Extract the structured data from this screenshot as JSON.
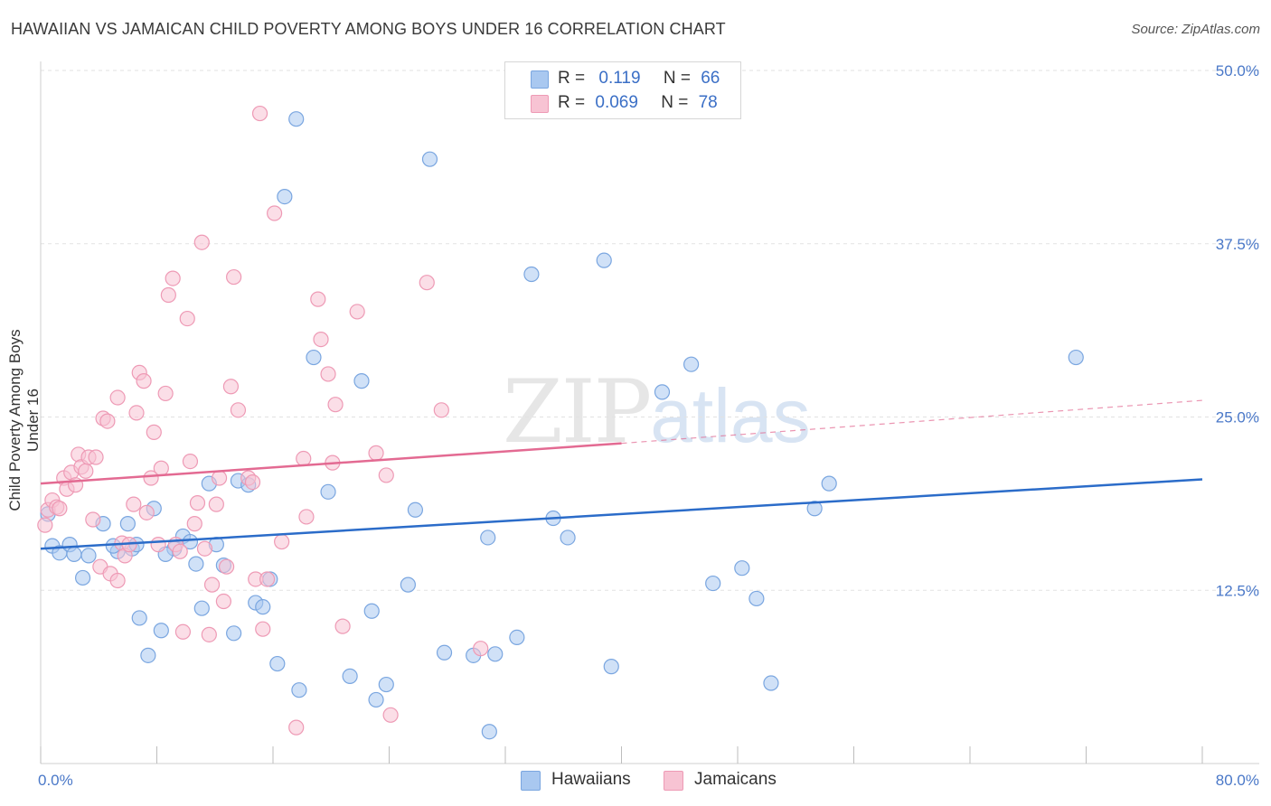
{
  "title": "HAWAIIAN VS JAMAICAN CHILD POVERTY AMONG BOYS UNDER 16 CORRELATION CHART",
  "source": "Source: ZipAtlas.com",
  "watermark": {
    "zip": "ZIP",
    "atlas": "atlas"
  },
  "legend": {
    "rows": [
      {
        "r_label": "R =",
        "r_value": "0.119",
        "n_label": "N =",
        "n_value": "66",
        "color": "#a9c8f0",
        "border": "#7aa6e0"
      },
      {
        "r_label": "R =",
        "r_value": "0.069",
        "n_label": "N =",
        "n_value": "78",
        "color": "#f7c3d3",
        "border": "#ee9ab5"
      }
    ]
  },
  "bottom_legend": [
    {
      "label": "Hawaiians",
      "color": "#a9c8f0",
      "border": "#7aa6e0"
    },
    {
      "label": "Jamaicans",
      "color": "#f7c3d3",
      "border": "#ee9ab5"
    }
  ],
  "chart_data": {
    "type": "scatter",
    "title": "HAWAIIAN VS JAMAICAN CHILD POVERTY AMONG BOYS UNDER 16 CORRELATION CHART",
    "xlabel": "",
    "ylabel": "Child Poverty Among Boys Under 16",
    "xlim": [
      0,
      80
    ],
    "ylim": [
      0,
      50
    ],
    "x_tick_labels": [
      "0.0%",
      "80.0%"
    ],
    "y_ticks": [
      12.5,
      25.0,
      37.5,
      50.0
    ],
    "y_tick_labels": [
      "12.5%",
      "25.0%",
      "37.5%",
      "50.0%"
    ],
    "grid": "horizontal dashed",
    "series": [
      {
        "name": "Hawaiians",
        "color": "#7aa6e0",
        "fill": "#a9c8f0",
        "trend": {
          "x0": 0,
          "y0": 15.5,
          "x1": 80,
          "y1": 20.5,
          "style": "solid",
          "color": "#2b6cc9"
        },
        "points": [
          [
            0.8,
            15.7
          ],
          [
            1.3,
            15.2
          ],
          [
            2.0,
            15.8
          ],
          [
            2.3,
            15.1
          ],
          [
            3.3,
            15.0
          ],
          [
            2.9,
            13.4
          ],
          [
            4.3,
            17.3
          ],
          [
            5.3,
            15.3
          ],
          [
            5.0,
            15.7
          ],
          [
            6.3,
            15.5
          ],
          [
            6.6,
            15.8
          ],
          [
            6.0,
            17.3
          ],
          [
            7.8,
            18.4
          ],
          [
            8.3,
            9.6
          ],
          [
            7.4,
            7.8
          ],
          [
            6.8,
            10.5
          ],
          [
            9.2,
            15.5
          ],
          [
            8.6,
            15.1
          ],
          [
            9.8,
            16.4
          ],
          [
            10.3,
            16.0
          ],
          [
            10.7,
            14.4
          ],
          [
            11.1,
            11.2
          ],
          [
            11.6,
            20.2
          ],
          [
            12.1,
            15.8
          ],
          [
            12.6,
            14.3
          ],
          [
            13.3,
            9.4
          ],
          [
            13.6,
            20.4
          ],
          [
            14.3,
            20.1
          ],
          [
            14.8,
            11.6
          ],
          [
            15.3,
            11.3
          ],
          [
            15.8,
            13.3
          ],
          [
            16.3,
            7.2
          ],
          [
            16.8,
            40.9
          ],
          [
            17.6,
            46.5
          ],
          [
            17.8,
            5.3
          ],
          [
            18.8,
            29.3
          ],
          [
            19.8,
            19.6
          ],
          [
            21.3,
            6.3
          ],
          [
            22.1,
            27.6
          ],
          [
            22.8,
            11.0
          ],
          [
            23.1,
            4.6
          ],
          [
            23.8,
            5.7
          ],
          [
            25.3,
            12.9
          ],
          [
            25.8,
            18.3
          ],
          [
            26.8,
            43.6
          ],
          [
            27.8,
            8.0
          ],
          [
            29.8,
            7.8
          ],
          [
            30.8,
            16.3
          ],
          [
            30.9,
            2.3
          ],
          [
            31.3,
            7.9
          ],
          [
            32.8,
            9.1
          ],
          [
            33.8,
            35.3
          ],
          [
            35.3,
            17.7
          ],
          [
            36.3,
            16.3
          ],
          [
            38.8,
            36.3
          ],
          [
            39.3,
            7.0
          ],
          [
            42.8,
            26.8
          ],
          [
            44.8,
            28.8
          ],
          [
            46.3,
            13.0
          ],
          [
            48.3,
            14.1
          ],
          [
            49.3,
            11.9
          ],
          [
            50.3,
            5.8
          ],
          [
            53.3,
            18.4
          ],
          [
            54.3,
            20.2
          ],
          [
            71.3,
            29.3
          ],
          [
            0.5,
            18.0
          ]
        ]
      },
      {
        "name": "Jamaicans",
        "color": "#ee9ab5",
        "fill": "#f7c3d3",
        "trend": {
          "x0": 0,
          "y0": 20.2,
          "x1": 40,
          "y1": 23.1,
          "x2": 80,
          "y2": 26.2,
          "style": "solid-then-dashed",
          "color": "#e36a92"
        },
        "points": [
          [
            0.3,
            17.2
          ],
          [
            0.5,
            18.3
          ],
          [
            0.8,
            19.0
          ],
          [
            1.1,
            18.5
          ],
          [
            1.3,
            18.4
          ],
          [
            1.6,
            20.6
          ],
          [
            1.8,
            19.8
          ],
          [
            2.1,
            21.0
          ],
          [
            2.4,
            20.1
          ],
          [
            2.6,
            22.3
          ],
          [
            2.8,
            21.4
          ],
          [
            3.1,
            21.1
          ],
          [
            3.3,
            22.1
          ],
          [
            3.8,
            22.1
          ],
          [
            3.6,
            17.6
          ],
          [
            4.1,
            14.2
          ],
          [
            4.3,
            24.9
          ],
          [
            4.6,
            24.7
          ],
          [
            4.8,
            13.7
          ],
          [
            5.3,
            26.4
          ],
          [
            5.6,
            15.9
          ],
          [
            5.3,
            13.2
          ],
          [
            5.8,
            15.0
          ],
          [
            6.1,
            15.8
          ],
          [
            6.4,
            18.7
          ],
          [
            6.6,
            25.3
          ],
          [
            6.8,
            28.2
          ],
          [
            7.1,
            27.6
          ],
          [
            7.3,
            18.1
          ],
          [
            7.6,
            20.6
          ],
          [
            7.8,
            23.9
          ],
          [
            8.1,
            15.8
          ],
          [
            8.3,
            21.3
          ],
          [
            8.6,
            26.7
          ],
          [
            8.8,
            33.8
          ],
          [
            9.1,
            35.0
          ],
          [
            9.3,
            15.8
          ],
          [
            9.6,
            15.3
          ],
          [
            9.8,
            9.5
          ],
          [
            10.1,
            32.1
          ],
          [
            10.3,
            21.8
          ],
          [
            10.6,
            17.3
          ],
          [
            10.8,
            18.8
          ],
          [
            11.1,
            37.6
          ],
          [
            11.3,
            15.5
          ],
          [
            11.6,
            9.3
          ],
          [
            11.8,
            12.9
          ],
          [
            12.1,
            18.7
          ],
          [
            12.3,
            20.6
          ],
          [
            12.6,
            11.7
          ],
          [
            12.8,
            14.2
          ],
          [
            13.1,
            27.2
          ],
          [
            13.3,
            35.1
          ],
          [
            13.6,
            25.5
          ],
          [
            14.3,
            20.6
          ],
          [
            14.6,
            20.3
          ],
          [
            14.8,
            13.3
          ],
          [
            15.1,
            46.9
          ],
          [
            15.3,
            9.7
          ],
          [
            15.6,
            13.3
          ],
          [
            16.1,
            39.7
          ],
          [
            16.6,
            16.0
          ],
          [
            17.6,
            2.6
          ],
          [
            18.1,
            22.0
          ],
          [
            18.3,
            17.8
          ],
          [
            19.1,
            33.5
          ],
          [
            19.3,
            30.6
          ],
          [
            19.8,
            28.1
          ],
          [
            20.1,
            21.7
          ],
          [
            20.3,
            25.9
          ],
          [
            20.8,
            9.9
          ],
          [
            21.8,
            32.6
          ],
          [
            23.1,
            22.4
          ],
          [
            23.8,
            20.8
          ],
          [
            24.1,
            3.5
          ],
          [
            26.6,
            34.7
          ],
          [
            27.6,
            25.5
          ],
          [
            30.3,
            8.3
          ]
        ]
      }
    ]
  }
}
